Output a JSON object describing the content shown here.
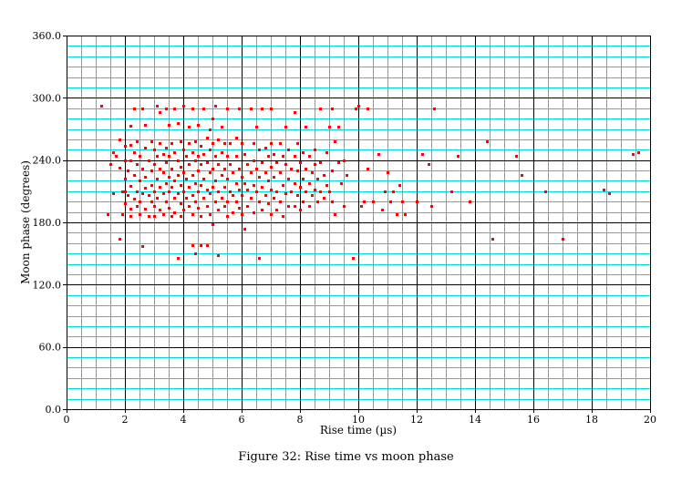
{
  "chart_data": {
    "type": "scatter",
    "title": "",
    "xlabel": "Rise time (µs)",
    "ylabel": "Moon phase (degrees)",
    "xlim": [
      0,
      20
    ],
    "ylim": [
      0,
      360
    ],
    "x_ticks": [
      "0",
      "2",
      "4",
      "6",
      "8",
      "10",
      "12",
      "14",
      "16",
      "18",
      "20"
    ],
    "y_ticks": [
      "0.0",
      "60.0",
      "120.0",
      "180.0",
      "240.0",
      "300.0",
      "360.0"
    ],
    "grid": true,
    "colors": {
      "points": "#ff0000",
      "minor_grid": "#00d8d8",
      "major_grid": "#000000"
    },
    "series": [
      {
        "points": [
          [
            1.2,
            292
          ],
          [
            1.4,
            188
          ],
          [
            1.5,
            236
          ],
          [
            1.6,
            248
          ],
          [
            1.6,
            208
          ],
          [
            1.7,
            244
          ],
          [
            1.8,
            260
          ],
          [
            1.8,
            233
          ],
          [
            1.8,
            164
          ],
          [
            1.9,
            210
          ],
          [
            1.9,
            188
          ],
          [
            2.0,
            254
          ],
          [
            2.0,
            240
          ],
          [
            2.0,
            222
          ],
          [
            2.0,
            210
          ],
          [
            2.0,
            198
          ],
          [
            2.1,
            230
          ],
          [
            2.1,
            206
          ],
          [
            2.2,
            273
          ],
          [
            2.2,
            255
          ],
          [
            2.2,
            240
          ],
          [
            2.2,
            215
          ],
          [
            2.2,
            193
          ],
          [
            2.2,
            186
          ],
          [
            2.3,
            290
          ],
          [
            2.3,
            248
          ],
          [
            2.3,
            226
          ],
          [
            2.3,
            203
          ],
          [
            2.4,
            258
          ],
          [
            2.4,
            236
          ],
          [
            2.4,
            210
          ],
          [
            2.4,
            196
          ],
          [
            2.5,
            244
          ],
          [
            2.5,
            220
          ],
          [
            2.5,
            200
          ],
          [
            2.5,
            188
          ],
          [
            2.6,
            157
          ],
          [
            2.6,
            290
          ],
          [
            2.6,
            232
          ],
          [
            2.6,
            208
          ],
          [
            2.7,
            274
          ],
          [
            2.7,
            252
          ],
          [
            2.7,
            224
          ],
          [
            2.7,
            213
          ],
          [
            2.7,
            193
          ],
          [
            2.8,
            240
          ],
          [
            2.8,
            206
          ],
          [
            2.8,
            186
          ],
          [
            2.9,
            258
          ],
          [
            2.9,
            230
          ],
          [
            2.9,
            216
          ],
          [
            2.9,
            200
          ],
          [
            3.0,
            250
          ],
          [
            3.0,
            236
          ],
          [
            3.0,
            210
          ],
          [
            3.0,
            196
          ],
          [
            3.0,
            186
          ],
          [
            3.1,
            292
          ],
          [
            3.1,
            244
          ],
          [
            3.1,
            222
          ],
          [
            3.1,
            204
          ],
          [
            3.2,
            286
          ],
          [
            3.2,
            256
          ],
          [
            3.2,
            232
          ],
          [
            3.2,
            214
          ],
          [
            3.2,
            192
          ],
          [
            3.3,
            246
          ],
          [
            3.3,
            228
          ],
          [
            3.3,
            208
          ],
          [
            3.3,
            188
          ],
          [
            3.4,
            290
          ],
          [
            3.4,
            252
          ],
          [
            3.4,
            238
          ],
          [
            3.4,
            218
          ],
          [
            3.4,
            200
          ],
          [
            3.5,
            274
          ],
          [
            3.5,
            244
          ],
          [
            3.5,
            224
          ],
          [
            3.5,
            210
          ],
          [
            3.5,
            194
          ],
          [
            3.6,
            256
          ],
          [
            3.6,
            232
          ],
          [
            3.6,
            214
          ],
          [
            3.6,
            186
          ],
          [
            3.7,
            290
          ],
          [
            3.7,
            248
          ],
          [
            3.7,
            220
          ],
          [
            3.7,
            204
          ],
          [
            3.7,
            190
          ],
          [
            3.8,
            146
          ],
          [
            3.8,
            276
          ],
          [
            3.8,
            240
          ],
          [
            3.8,
            226
          ],
          [
            3.8,
            208
          ],
          [
            3.9,
            258
          ],
          [
            3.9,
            234
          ],
          [
            3.9,
            216
          ],
          [
            3.9,
            198
          ],
          [
            3.9,
            186
          ],
          [
            4.0,
            292
          ],
          [
            4.0,
            250
          ],
          [
            4.0,
            228
          ],
          [
            4.0,
            210
          ],
          [
            4.0,
            192
          ],
          [
            4.1,
            244
          ],
          [
            4.1,
            222
          ],
          [
            4.1,
            204
          ],
          [
            4.2,
            272
          ],
          [
            4.2,
            256
          ],
          [
            4.2,
            236
          ],
          [
            4.2,
            214
          ],
          [
            4.2,
            196
          ],
          [
            4.3,
            158
          ],
          [
            4.3,
            290
          ],
          [
            4.3,
            248
          ],
          [
            4.3,
            226
          ],
          [
            4.3,
            206
          ],
          [
            4.3,
            188
          ],
          [
            4.4,
            150
          ],
          [
            4.4,
            258
          ],
          [
            4.4,
            240
          ],
          [
            4.4,
            218
          ],
          [
            4.4,
            200
          ],
          [
            4.5,
            274
          ],
          [
            4.5,
            244
          ],
          [
            4.5,
            230
          ],
          [
            4.5,
            210
          ],
          [
            4.5,
            194
          ],
          [
            4.6,
            158
          ],
          [
            4.6,
            254
          ],
          [
            4.6,
            236
          ],
          [
            4.6,
            216
          ],
          [
            4.6,
            186
          ],
          [
            4.7,
            290
          ],
          [
            4.7,
            246
          ],
          [
            4.7,
            222
          ],
          [
            4.7,
            204
          ],
          [
            4.8,
            158
          ],
          [
            4.8,
            262
          ],
          [
            4.8,
            238
          ],
          [
            4.8,
            212
          ],
          [
            4.8,
            196
          ],
          [
            4.9,
            270
          ],
          [
            4.9,
            250
          ],
          [
            4.9,
            228
          ],
          [
            4.9,
            208
          ],
          [
            4.9,
            188
          ],
          [
            5.0,
            280
          ],
          [
            5.0,
            256
          ],
          [
            5.0,
            232
          ],
          [
            5.0,
            214
          ],
          [
            5.0,
            178
          ],
          [
            5.1,
            292
          ],
          [
            5.1,
            244
          ],
          [
            5.1,
            220
          ],
          [
            5.1,
            200
          ],
          [
            5.2,
            148
          ],
          [
            5.2,
            260
          ],
          [
            5.2,
            236
          ],
          [
            5.2,
            210
          ],
          [
            5.2,
            192
          ],
          [
            5.3,
            272
          ],
          [
            5.3,
            248
          ],
          [
            5.3,
            226
          ],
          [
            5.3,
            204
          ],
          [
            5.4,
            256
          ],
          [
            5.4,
            232
          ],
          [
            5.4,
            214
          ],
          [
            5.4,
            196
          ],
          [
            5.5,
            290
          ],
          [
            5.5,
            244
          ],
          [
            5.5,
            222
          ],
          [
            5.5,
            200
          ],
          [
            5.5,
            186
          ],
          [
            5.6,
            256
          ],
          [
            5.6,
            236
          ],
          [
            5.6,
            210
          ],
          [
            5.7,
            228
          ],
          [
            5.7,
            206
          ],
          [
            5.7,
            190
          ],
          [
            5.8,
            262
          ],
          [
            5.8,
            244
          ],
          [
            5.8,
            218
          ],
          [
            5.8,
            200
          ],
          [
            5.9,
            290
          ],
          [
            5.9,
            232
          ],
          [
            5.9,
            212
          ],
          [
            5.9,
            194
          ],
          [
            6.0,
            256
          ],
          [
            6.0,
            224
          ],
          [
            6.0,
            206
          ],
          [
            6.0,
            188
          ],
          [
            6.1,
            246
          ],
          [
            6.1,
            218
          ],
          [
            6.1,
            174
          ],
          [
            6.2,
            236
          ],
          [
            6.2,
            212
          ],
          [
            6.2,
            196
          ],
          [
            6.3,
            290
          ],
          [
            6.3,
            228
          ],
          [
            6.3,
            204
          ],
          [
            6.4,
            256
          ],
          [
            6.4,
            240
          ],
          [
            6.4,
            216
          ],
          [
            6.4,
            190
          ],
          [
            6.5,
            272
          ],
          [
            6.5,
            232
          ],
          [
            6.5,
            210
          ],
          [
            6.6,
            146
          ],
          [
            6.6,
            250
          ],
          [
            6.6,
            224
          ],
          [
            6.6,
            200
          ],
          [
            6.7,
            290
          ],
          [
            6.7,
            238
          ],
          [
            6.7,
            214
          ],
          [
            6.7,
            192
          ],
          [
            6.8,
            252
          ],
          [
            6.8,
            228
          ],
          [
            6.8,
            206
          ],
          [
            6.9,
            244
          ],
          [
            6.9,
            220
          ],
          [
            6.9,
            198
          ],
          [
            7.0,
            290
          ],
          [
            7.0,
            256
          ],
          [
            7.0,
            234
          ],
          [
            7.0,
            212
          ],
          [
            7.0,
            188
          ],
          [
            7.1,
            246
          ],
          [
            7.1,
            224
          ],
          [
            7.1,
            204
          ],
          [
            7.2,
            238
          ],
          [
            7.2,
            210
          ],
          [
            7.2,
            192
          ],
          [
            7.3,
            256
          ],
          [
            7.3,
            228
          ],
          [
            7.3,
            200
          ],
          [
            7.4,
            244
          ],
          [
            7.4,
            216
          ],
          [
            7.4,
            186
          ],
          [
            7.5,
            272
          ],
          [
            7.5,
            236
          ],
          [
            7.5,
            208
          ],
          [
            7.6,
            250
          ],
          [
            7.6,
            222
          ],
          [
            7.6,
            196
          ],
          [
            7.7,
            232
          ],
          [
            7.7,
            210
          ],
          [
            7.8,
            286
          ],
          [
            7.8,
            244
          ],
          [
            7.8,
            218
          ],
          [
            7.8,
            196
          ],
          [
            7.9,
            256
          ],
          [
            7.9,
            230
          ],
          [
            7.9,
            206
          ],
          [
            8.0,
            238
          ],
          [
            8.0,
            214
          ],
          [
            8.0,
            192
          ],
          [
            8.1,
            248
          ],
          [
            8.1,
            222
          ],
          [
            8.1,
            200
          ],
          [
            8.2,
            272
          ],
          [
            8.2,
            232
          ],
          [
            8.2,
            210
          ],
          [
            8.3,
            244
          ],
          [
            8.3,
            218
          ],
          [
            8.3,
            196
          ],
          [
            8.4,
            228
          ],
          [
            8.4,
            206
          ],
          [
            8.5,
            250
          ],
          [
            8.5,
            236
          ],
          [
            8.5,
            212
          ],
          [
            8.6,
            222
          ],
          [
            8.6,
            200
          ],
          [
            8.7,
            290
          ],
          [
            8.7,
            238
          ],
          [
            8.7,
            210
          ],
          [
            8.8,
            226
          ],
          [
            8.8,
            204
          ],
          [
            8.9,
            248
          ],
          [
            8.9,
            216
          ],
          [
            9.0,
            272
          ],
          [
            9.0,
            210
          ],
          [
            9.1,
            290
          ],
          [
            9.1,
            230
          ],
          [
            9.1,
            200
          ],
          [
            9.2,
            258
          ],
          [
            9.2,
            188
          ],
          [
            9.3,
            272
          ],
          [
            9.3,
            238
          ],
          [
            9.4,
            218
          ],
          [
            9.5,
            240
          ],
          [
            9.5,
            196
          ],
          [
            9.6,
            226
          ],
          [
            9.8,
            146
          ],
          [
            9.9,
            290
          ],
          [
            10.0,
            292
          ],
          [
            10.1,
            196
          ],
          [
            10.2,
            200
          ],
          [
            10.3,
            232
          ],
          [
            10.3,
            290
          ],
          [
            10.5,
            200
          ],
          [
            10.7,
            246
          ],
          [
            10.8,
            192
          ],
          [
            10.9,
            210
          ],
          [
            11.0,
            228
          ],
          [
            11.1,
            200
          ],
          [
            11.2,
            210
          ],
          [
            11.3,
            188
          ],
          [
            11.4,
            216
          ],
          [
            11.5,
            200
          ],
          [
            11.6,
            188
          ],
          [
            12.0,
            200
          ],
          [
            12.2,
            246
          ],
          [
            12.4,
            236
          ],
          [
            12.5,
            196
          ],
          [
            12.6,
            290
          ],
          [
            13.2,
            210
          ],
          [
            13.4,
            244
          ],
          [
            13.8,
            200
          ],
          [
            14.4,
            258
          ],
          [
            14.6,
            164
          ],
          [
            15.4,
            244
          ],
          [
            15.6,
            226
          ],
          [
            16.4,
            210
          ],
          [
            17.0,
            164
          ],
          [
            18.4,
            212
          ],
          [
            18.6,
            208
          ],
          [
            19.4,
            246
          ],
          [
            19.6,
            248
          ]
        ]
      }
    ]
  },
  "caption": "Figure 32: Rise time vs moon phase"
}
